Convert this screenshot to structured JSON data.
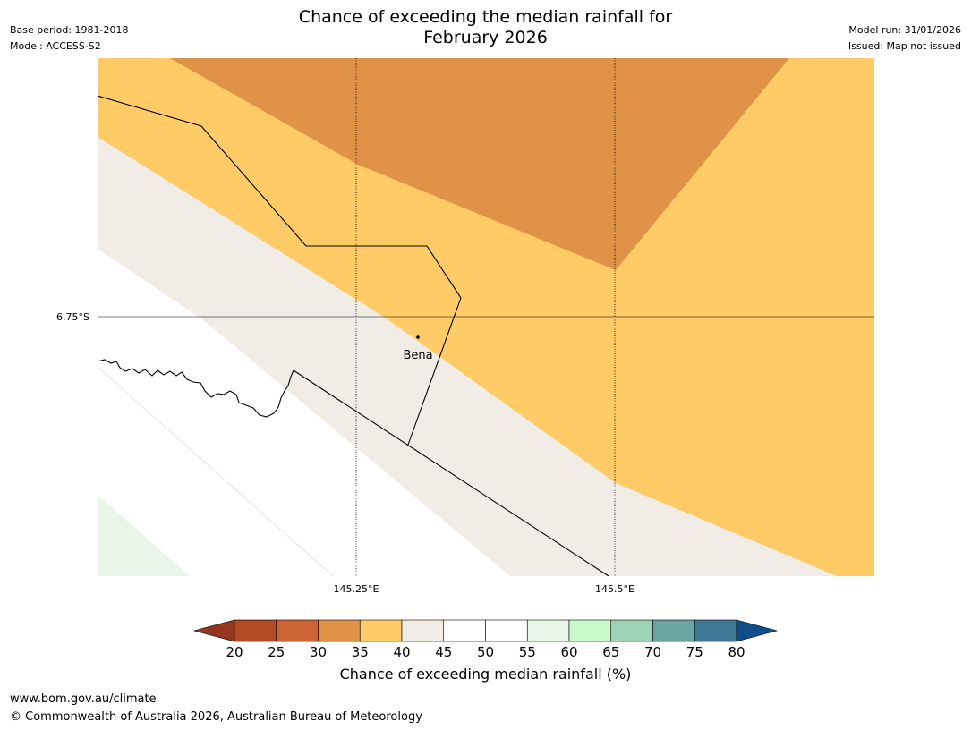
{
  "title": "Chance of exceeding the median rainfall for",
  "title_line2": "February 2026",
  "meta": {
    "base_period": "Base period: 1981-2018",
    "model": "Model: ACCESS-S2",
    "model_run": "Model run: 31/01/2026",
    "issued": "Issued: Map not issued"
  },
  "map": {
    "lat_label": "6.75°S",
    "lon_labels": [
      "145.25°E",
      "145.5°E"
    ],
    "town": "Bena"
  },
  "colorbar": {
    "label": "Chance of exceeding median rainfall (%)",
    "ticks": [
      "20",
      "25",
      "30",
      "35",
      "40",
      "45",
      "50",
      "55",
      "60",
      "65",
      "70",
      "75",
      "80"
    ],
    "under_color": "#96361f",
    "over_color": "#0f4e8c",
    "colors": [
      "#b14a25",
      "#cd6433",
      "#e09346",
      "#ffcb66",
      "#f1ece6",
      "#ffffff",
      "#ffffff",
      "#e8f5e8",
      "#c8fac8",
      "#9ed1b6",
      "#6ba4a3",
      "#3f7796"
    ]
  },
  "footer": {
    "url": "www.bom.gov.au/climate",
    "copyright": "© Commonwealth of Australia 2026, Australian Bureau of Meteorology"
  }
}
